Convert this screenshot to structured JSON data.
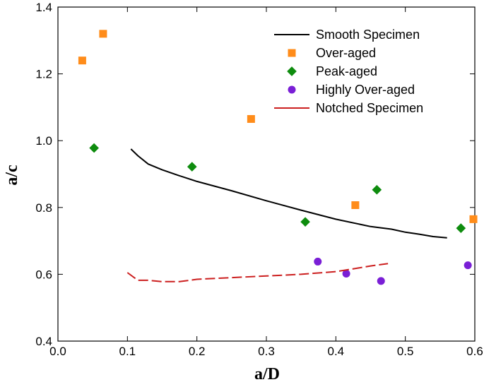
{
  "chart_data": {
    "type": "scatter",
    "title": "",
    "xlabel": "a/D",
    "ylabel": "a/c",
    "xlim": [
      0.0,
      0.6
    ],
    "ylim": [
      0.4,
      1.4
    ],
    "xticks": [
      0.0,
      0.1,
      0.2,
      0.3,
      0.4,
      0.5,
      0.6
    ],
    "yticks": [
      0.4,
      0.6,
      0.8,
      1.0,
      1.2,
      1.4
    ],
    "xtick_labels": [
      "0.0",
      "0.1",
      "0.2",
      "0.3",
      "0.4",
      "0.5",
      "0.6"
    ],
    "ytick_labels": [
      "0.4",
      "0.6",
      "0.8",
      "1.0",
      "1.2",
      "1.4"
    ],
    "grid": false,
    "legend_position": "top-right",
    "series": [
      {
        "name": "Smooth Specimen",
        "kind": "line",
        "style": "solid",
        "color": "#000000",
        "x": [
          0.105,
          0.115,
          0.13,
          0.15,
          0.175,
          0.2,
          0.25,
          0.3,
          0.35,
          0.4,
          0.45,
          0.48,
          0.5,
          0.52,
          0.54,
          0.56
        ],
        "y": [
          0.975,
          0.955,
          0.93,
          0.913,
          0.895,
          0.878,
          0.85,
          0.82,
          0.792,
          0.765,
          0.743,
          0.735,
          0.726,
          0.72,
          0.713,
          0.709
        ]
      },
      {
        "name": "Over-aged",
        "kind": "marker",
        "marker": "square",
        "color": "#FF8C1A",
        "x": [
          0.035,
          0.065,
          0.278,
          0.428,
          0.598
        ],
        "y": [
          1.24,
          1.32,
          1.065,
          0.807,
          0.765
        ]
      },
      {
        "name": "Peak-aged",
        "kind": "marker",
        "marker": "diamond",
        "color": "#0E8C0E",
        "x": [
          0.052,
          0.193,
          0.356,
          0.459,
          0.58
        ],
        "y": [
          0.978,
          0.922,
          0.757,
          0.853,
          0.738
        ]
      },
      {
        "name": "Highly Over-aged",
        "kind": "marker",
        "marker": "circle",
        "color": "#7A1FD6",
        "x": [
          0.374,
          0.415,
          0.465,
          0.59
        ],
        "y": [
          0.638,
          0.602,
          0.58,
          0.627
        ]
      },
      {
        "name": "Notched Specimen",
        "kind": "line",
        "style": "dashed",
        "color": "#CC1F1F",
        "x": [
          0.1,
          0.115,
          0.13,
          0.15,
          0.175,
          0.2,
          0.25,
          0.3,
          0.35,
          0.4,
          0.43,
          0.45,
          0.475
        ],
        "y": [
          0.605,
          0.582,
          0.582,
          0.578,
          0.578,
          0.585,
          0.59,
          0.595,
          0.6,
          0.608,
          0.618,
          0.625,
          0.632
        ]
      }
    ]
  }
}
